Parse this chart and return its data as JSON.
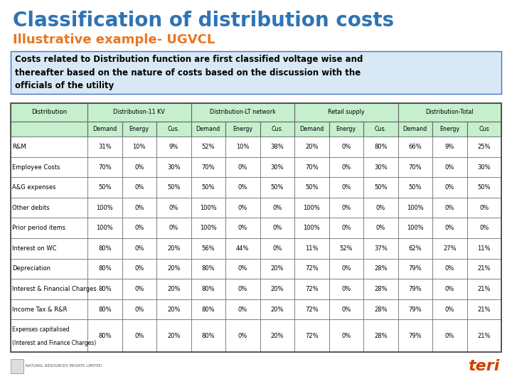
{
  "title": "Classification of distribution costs",
  "subtitle": "Illustrative example- UGVCL",
  "description": "Costs related to Distribution function are first classified voltage wise and\nthereafter based on the nature of costs based on the discussion with the\nofficials of the utility",
  "title_color": "#2E74B5",
  "subtitle_color": "#E87722",
  "bg_color": "#FFFFFF",
  "table_header_bg": "#C6EFCE",
  "col_groups": [
    "Distribution",
    "Distribution-11 KV",
    "Distribution-LT network",
    "Retail supply",
    "Distribution-Total"
  ],
  "sub_headers": [
    "Demand",
    "Energy",
    "Cus.",
    "Demand",
    "Energy",
    "Cus.",
    "Demand",
    "Energy",
    "Cus.",
    "Demand",
    "Energy",
    "Cus"
  ],
  "rows": [
    [
      "R&M",
      "31%",
      "10%",
      "9%",
      "52%",
      "10%",
      "38%",
      "20%",
      "0%",
      "80%",
      "66%",
      "9%",
      "25%"
    ],
    [
      "Employee Costs",
      "70%",
      "0%",
      "30%",
      "70%",
      "0%",
      "30%",
      "70%",
      "0%",
      "30%",
      "70%",
      "0%",
      "30%"
    ],
    [
      "A&G expenses",
      "50%",
      "0%",
      "50%",
      "50%",
      "0%",
      "50%",
      "50%",
      "0%",
      "50%",
      "50%",
      "0%",
      "50%"
    ],
    [
      "Other debits",
      "100%",
      "0%",
      "0%",
      "100%",
      "0%",
      "0%",
      "100%",
      "0%",
      "0%",
      "100%",
      "0%",
      "0%"
    ],
    [
      "Prior period items",
      "100%",
      "0%",
      "0%",
      "100%",
      "0%",
      "0%",
      "100%",
      "0%",
      "0%",
      "100%",
      "0%",
      "0%"
    ],
    [
      "Interest on WC",
      "80%",
      "0%",
      "20%",
      "56%",
      "44%",
      "0%",
      "11%",
      "52%",
      "37%",
      "62%",
      "27%",
      "11%"
    ],
    [
      "Depreciation",
      "80%",
      "0%",
      "20%",
      "80%",
      "0%",
      "20%",
      "72%",
      "0%",
      "28%",
      "79%",
      "0%",
      "21%"
    ],
    [
      "Interest & Financial Charges",
      "80%",
      "0%",
      "20%",
      "80%",
      "0%",
      "20%",
      "72%",
      "0%",
      "28%",
      "79%",
      "0%",
      "21%"
    ],
    [
      "Income Tax & R&R",
      "80%",
      "0%",
      "20%",
      "80%",
      "0%",
      "20%",
      "72%",
      "0%",
      "28%",
      "79%",
      "0%",
      "21%"
    ],
    [
      "Expenses capitalised\n(Interest and Finance Charges)",
      "80%",
      "0%",
      "20%",
      "80%",
      "0%",
      "20%",
      "72%",
      "0%",
      "28%",
      "79%",
      "0%",
      "21%"
    ]
  ],
  "table_border_color": "#666666",
  "desc_box_bg": "#D9E8F5",
  "desc_box_border": "#4472C4",
  "teri_color": "#D04000"
}
